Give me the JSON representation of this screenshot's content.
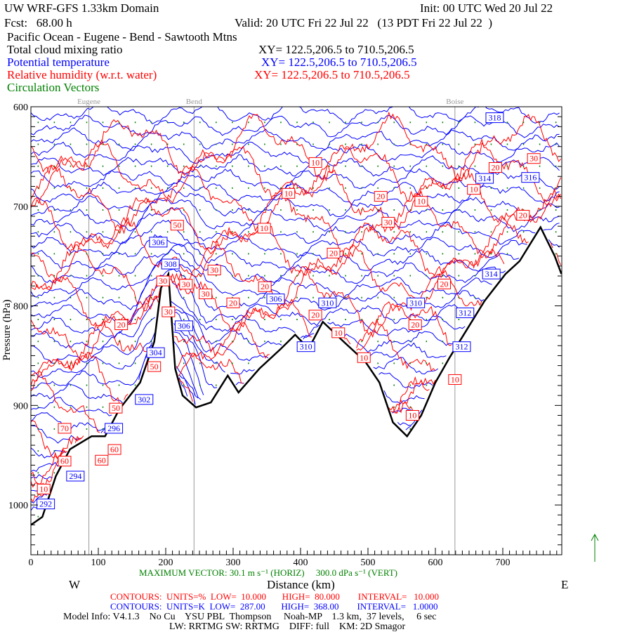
{
  "header": {
    "title": "UW WRF-GFS 1.33km Domain",
    "init": "Init: 00 UTC Wed 20 Jul 22",
    "fcst": "Fcst:   68.00 h",
    "valid": "Valid: 20 UTC Fri 22 Jul 22   (13 PDT Fri 22 Jul 22  )",
    "route": "Pacific Ocean - Eugene - Bend - Sawtooth Mtns",
    "f1": "Total cloud mixing ratio",
    "f1xy": "XY= 122.5,206.5 to 710.5,206.5",
    "f2": "Potential temperature",
    "f2xy": "XY= 122.5,206.5 to 710.5,206.5",
    "f3": "Relative humidity (w.r.t. water)",
    "f3xy": "XY= 122.5,206.5 to 710.5,206.5",
    "f4": "Circulation Vectors"
  },
  "colors": {
    "theta": "#0000ff",
    "rh": "#ff0000",
    "vec": "#008000",
    "terrain": "#000000",
    "city": "#999999"
  },
  "footer": {
    "maxvec": "MAXIMUM VECTOR: 30.1 m s⁻¹ (HORIZ)     300.0 dPa s⁻¹ (VERT)",
    "rh": "CONTOURS:  UNITS=%  LOW=  10.000       HIGH=  80.000        INTERVAL=   10.000",
    "th": "CONTOURS:  UNITS=K  LOW=  287.00       HIGH=  368.00        INTERVAL=   1.0000",
    "west": "W",
    "east": "E",
    "xlabel": "Distance (km)",
    "model": "Model Info: V4.1.3    No Cu    YSU PBL  Thompson     Noah-MP    1.3 km,  37 levels,     6 sec",
    "model2": "LW: RRTMG SW: RRTMG    DIFF: full    KM: 2D Smagor"
  },
  "chart_data": {
    "type": "cross-section",
    "xlabel": "Distance (km)",
    "ylabel": "Pressure (hPa)",
    "xlim": [
      0,
      787
    ],
    "ylim": [
      1050,
      600
    ],
    "xticks": [
      0,
      100,
      200,
      300,
      400,
      500,
      600,
      700
    ],
    "yticks": [
      600,
      700,
      800,
      900,
      1000
    ],
    "cities": [
      {
        "name": "Eugene",
        "km": 86
      },
      {
        "name": "Bend",
        "km": 242
      },
      {
        "name": "Boise",
        "km": 629
      }
    ],
    "terrain": [
      [
        0,
        1020
      ],
      [
        17,
        1012
      ],
      [
        37,
        971
      ],
      [
        58,
        944
      ],
      [
        90,
        931
      ],
      [
        110,
        931
      ],
      [
        131,
        904
      ],
      [
        162,
        877
      ],
      [
        183,
        836
      ],
      [
        193,
        782
      ],
      [
        204,
        768
      ],
      [
        214,
        863
      ],
      [
        225,
        890
      ],
      [
        245,
        902
      ],
      [
        267,
        897
      ],
      [
        292,
        870
      ],
      [
        308,
        887
      ],
      [
        339,
        863
      ],
      [
        371,
        843
      ],
      [
        392,
        829
      ],
      [
        412,
        843
      ],
      [
        433,
        816
      ],
      [
        464,
        836
      ],
      [
        496,
        856
      ],
      [
        517,
        877
      ],
      [
        537,
        917
      ],
      [
        558,
        931
      ],
      [
        579,
        910
      ],
      [
        600,
        877
      ],
      [
        621,
        852
      ],
      [
        642,
        829
      ],
      [
        673,
        795
      ],
      [
        704,
        768
      ],
      [
        725,
        755
      ],
      [
        756,
        721
      ],
      [
        777,
        750
      ],
      [
        787,
        768
      ]
    ],
    "theta_labels": [
      [
        "292",
        22,
        999
      ],
      [
        "294",
        66,
        971
      ],
      [
        "296",
        123,
        923
      ],
      [
        "302",
        168,
        894
      ],
      [
        "304",
        185,
        847
      ],
      [
        "306",
        227,
        820
      ],
      [
        "306",
        189,
        736
      ],
      [
        "308",
        207,
        758
      ],
      [
        "306",
        363,
        793
      ],
      [
        "310",
        440,
        797
      ],
      [
        "310",
        408,
        841
      ],
      [
        "310",
        571,
        797
      ],
      [
        "312",
        644,
        807
      ],
      [
        "312",
        639,
        841
      ],
      [
        "314",
        683,
        768
      ],
      [
        "314",
        673,
        672
      ],
      [
        "316",
        741,
        671
      ],
      [
        "318",
        688,
        611
      ]
    ],
    "rh_labels": [
      [
        "70",
        50,
        923
      ],
      [
        "60",
        50,
        956
      ],
      [
        "60",
        105,
        955
      ],
      [
        "60",
        124,
        933
      ],
      [
        "50",
        126,
        914
      ],
      [
        "20",
        134,
        819
      ],
      [
        "50",
        183,
        861
      ],
      [
        "30",
        204,
        806
      ],
      [
        "30",
        196,
        775
      ],
      [
        "50",
        217,
        719
      ],
      [
        "30",
        230,
        767
      ],
      [
        "30",
        272,
        764
      ],
      [
        "30",
        259,
        788
      ],
      [
        "20",
        300,
        797
      ],
      [
        "20",
        347,
        792
      ],
      [
        "20",
        422,
        798
      ],
      [
        "10",
        346,
        722
      ],
      [
        "10",
        382,
        687
      ],
      [
        "10",
        422,
        656
      ],
      [
        "20",
        449,
        747
      ],
      [
        "10",
        456,
        827
      ],
      [
        "10",
        494,
        852
      ],
      [
        "20",
        519,
        690
      ],
      [
        "30",
        530,
        716
      ],
      [
        "10",
        579,
        695
      ],
      [
        "20",
        570,
        819
      ],
      [
        "20",
        613,
        778
      ],
      [
        "10",
        566,
        910
      ],
      [
        "10",
        629,
        874
      ],
      [
        "10",
        657,
        683
      ],
      [
        "20",
        689,
        661
      ],
      [
        "30",
        746,
        652
      ],
      [
        "20",
        730,
        709
      ],
      [
        "10",
        19,
        984
      ]
    ]
  }
}
